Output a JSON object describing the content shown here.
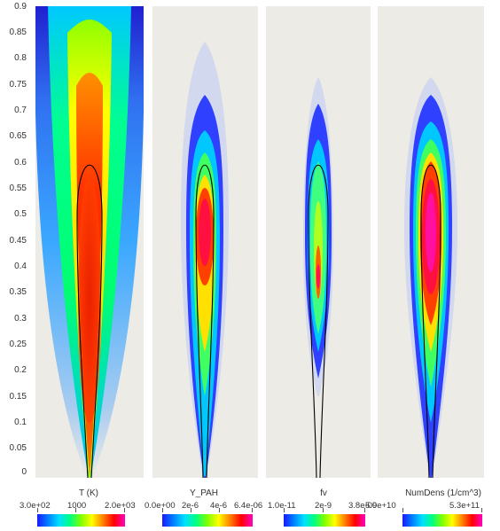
{
  "y_axis": {
    "ticks": [
      "0.9",
      "0.85",
      "0.8",
      "0.75",
      "0.7",
      "0.65",
      "0.6",
      "0.55",
      "0.5",
      "0.45",
      "0.4",
      "0.35",
      "0.3",
      "0.25",
      "0.2",
      "0.15",
      "0.1",
      "0.05",
      "0"
    ]
  },
  "panels": [
    {
      "name": "temperature",
      "colorbar": {
        "title": "T (K)",
        "min_label": "3.0e+02",
        "mid_labels": [
          "1000"
        ],
        "max_label": "2.0e+03"
      }
    },
    {
      "name": "y-pah",
      "colorbar": {
        "title": "Y_PAH",
        "min_label": "0.0e+00",
        "mid_labels": [
          "2e-6",
          "4e-6"
        ],
        "max_label": "6.4e-06"
      }
    },
    {
      "name": "fv",
      "colorbar": {
        "title": "fv",
        "min_label": "1.0e-11",
        "mid_labels": [
          "2e-9"
        ],
        "max_label": "3.8e-09"
      }
    },
    {
      "name": "numdens",
      "colorbar": {
        "title": "NumDens (1/cm^3)",
        "min_label": "5.0e+10",
        "mid_labels": [],
        "max_label": "5.3e+11"
      }
    }
  ],
  "colors": {
    "background_panel": "#ecebe6",
    "flame_contour": "#000000",
    "colormap": [
      "#1a1aff",
      "#0080ff",
      "#00e0ff",
      "#00ff80",
      "#80ff00",
      "#ffff00",
      "#ff8000",
      "#ff0000",
      "#ff00c0"
    ]
  }
}
